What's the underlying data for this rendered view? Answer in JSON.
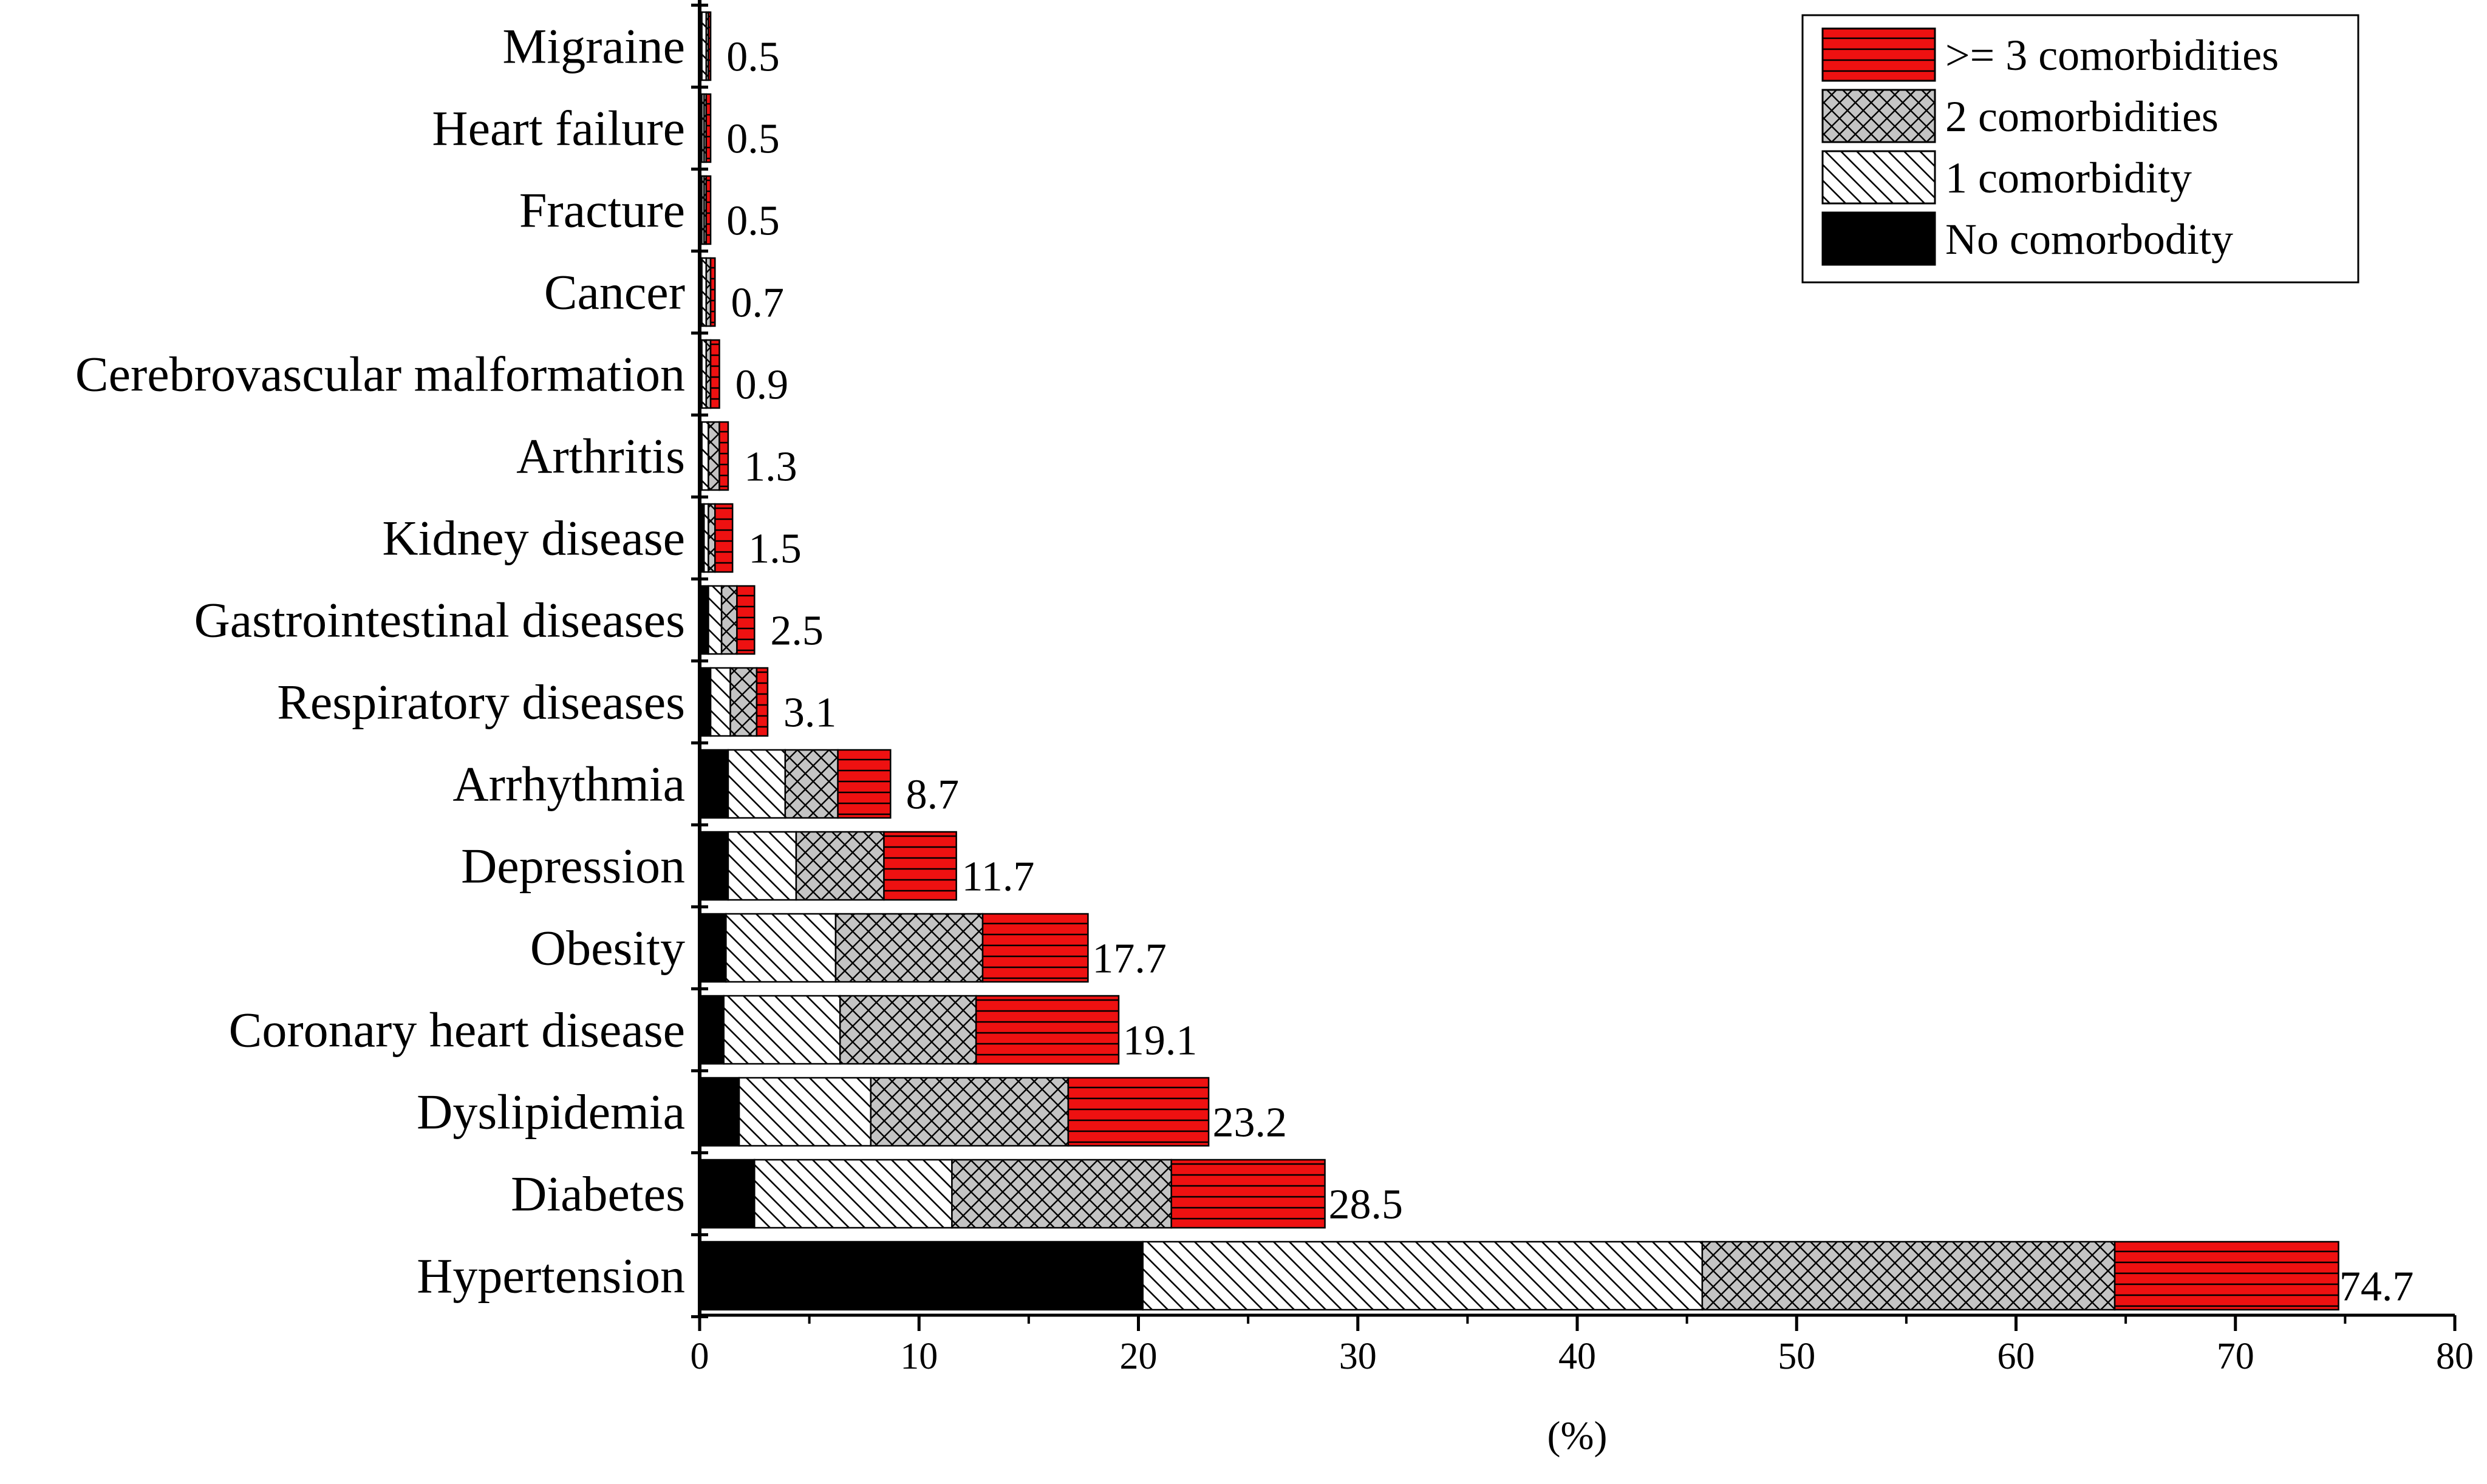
{
  "chart_data": {
    "type": "bar",
    "orientation": "horizontal",
    "stacked": true,
    "title": "",
    "xlabel": "(%)",
    "ylabel": "",
    "xlim": [
      0,
      80
    ],
    "xticks": [
      "0",
      "10",
      "20",
      "30",
      "40",
      "50",
      "60",
      "70",
      "80"
    ],
    "grid": false,
    "legend_position": "top-right",
    "categories": [
      "Hypertension",
      "Diabetes",
      "Dyslipidemia",
      "Coronary heart disease",
      "Obesity",
      "Depression",
      "Arrhythmia",
      "Respiratory diseases",
      "Gastrointestinal diseases",
      "Kidney disease",
      "Arthritis",
      "Cerebrovascular malformation",
      "Cancer",
      "Fracture",
      "Heart failure",
      "Migraine"
    ],
    "totals": [
      74.7,
      28.5,
      23.2,
      19.1,
      17.7,
      11.7,
      8.7,
      3.1,
      2.5,
      1.5,
      1.3,
      0.9,
      0.7,
      0.5,
      0.5,
      0.5
    ],
    "total_labels": [
      "74.7",
      "28.5",
      "23.2",
      "19.1",
      "17.7",
      "11.7",
      "8.7",
      "3.1",
      "2.5",
      "1.5",
      "1.3",
      "0.9",
      "0.7",
      "0.5",
      "0.5",
      "0.5"
    ],
    "series": [
      {
        "name": "No comorbodity",
        "color": "#000000",
        "pattern": "solid",
        "values": [
          20.2,
          2.5,
          1.8,
          1.1,
          1.2,
          1.3,
          1.3,
          0.5,
          0.4,
          0.2,
          0.1,
          0.1,
          0.1,
          0.1,
          0.1,
          0.1
        ]
      },
      {
        "name": "1 comorbidity",
        "color": "#ffffff",
        "pattern": "diagonal",
        "values": [
          25.5,
          9.0,
          6.0,
          5.3,
          5.0,
          3.1,
          2.6,
          0.9,
          0.6,
          0.2,
          0.3,
          0.2,
          0.2,
          0.1,
          0.1,
          0.2
        ]
      },
      {
        "name": "2 comorbidities",
        "color": "#c8c8c8",
        "pattern": "crosshatch",
        "values": [
          18.8,
          10.0,
          9.0,
          6.2,
          6.7,
          4.0,
          2.4,
          1.2,
          0.7,
          0.3,
          0.5,
          0.2,
          0.2,
          0.1,
          0.1,
          0.1
        ]
      },
      {
        "name": ">= 3 comorbidities",
        "color": "#ee1111",
        "pattern": "horizontal",
        "values": [
          10.2,
          7.0,
          6.4,
          6.5,
          4.8,
          3.3,
          2.4,
          0.5,
          0.8,
          0.8,
          0.4,
          0.4,
          0.2,
          0.2,
          0.2,
          0.1
        ]
      }
    ],
    "legend_order": [
      ">= 3 comorbidities",
      "2 comorbidities",
      "1 comorbidity",
      "No comorbodity"
    ]
  }
}
